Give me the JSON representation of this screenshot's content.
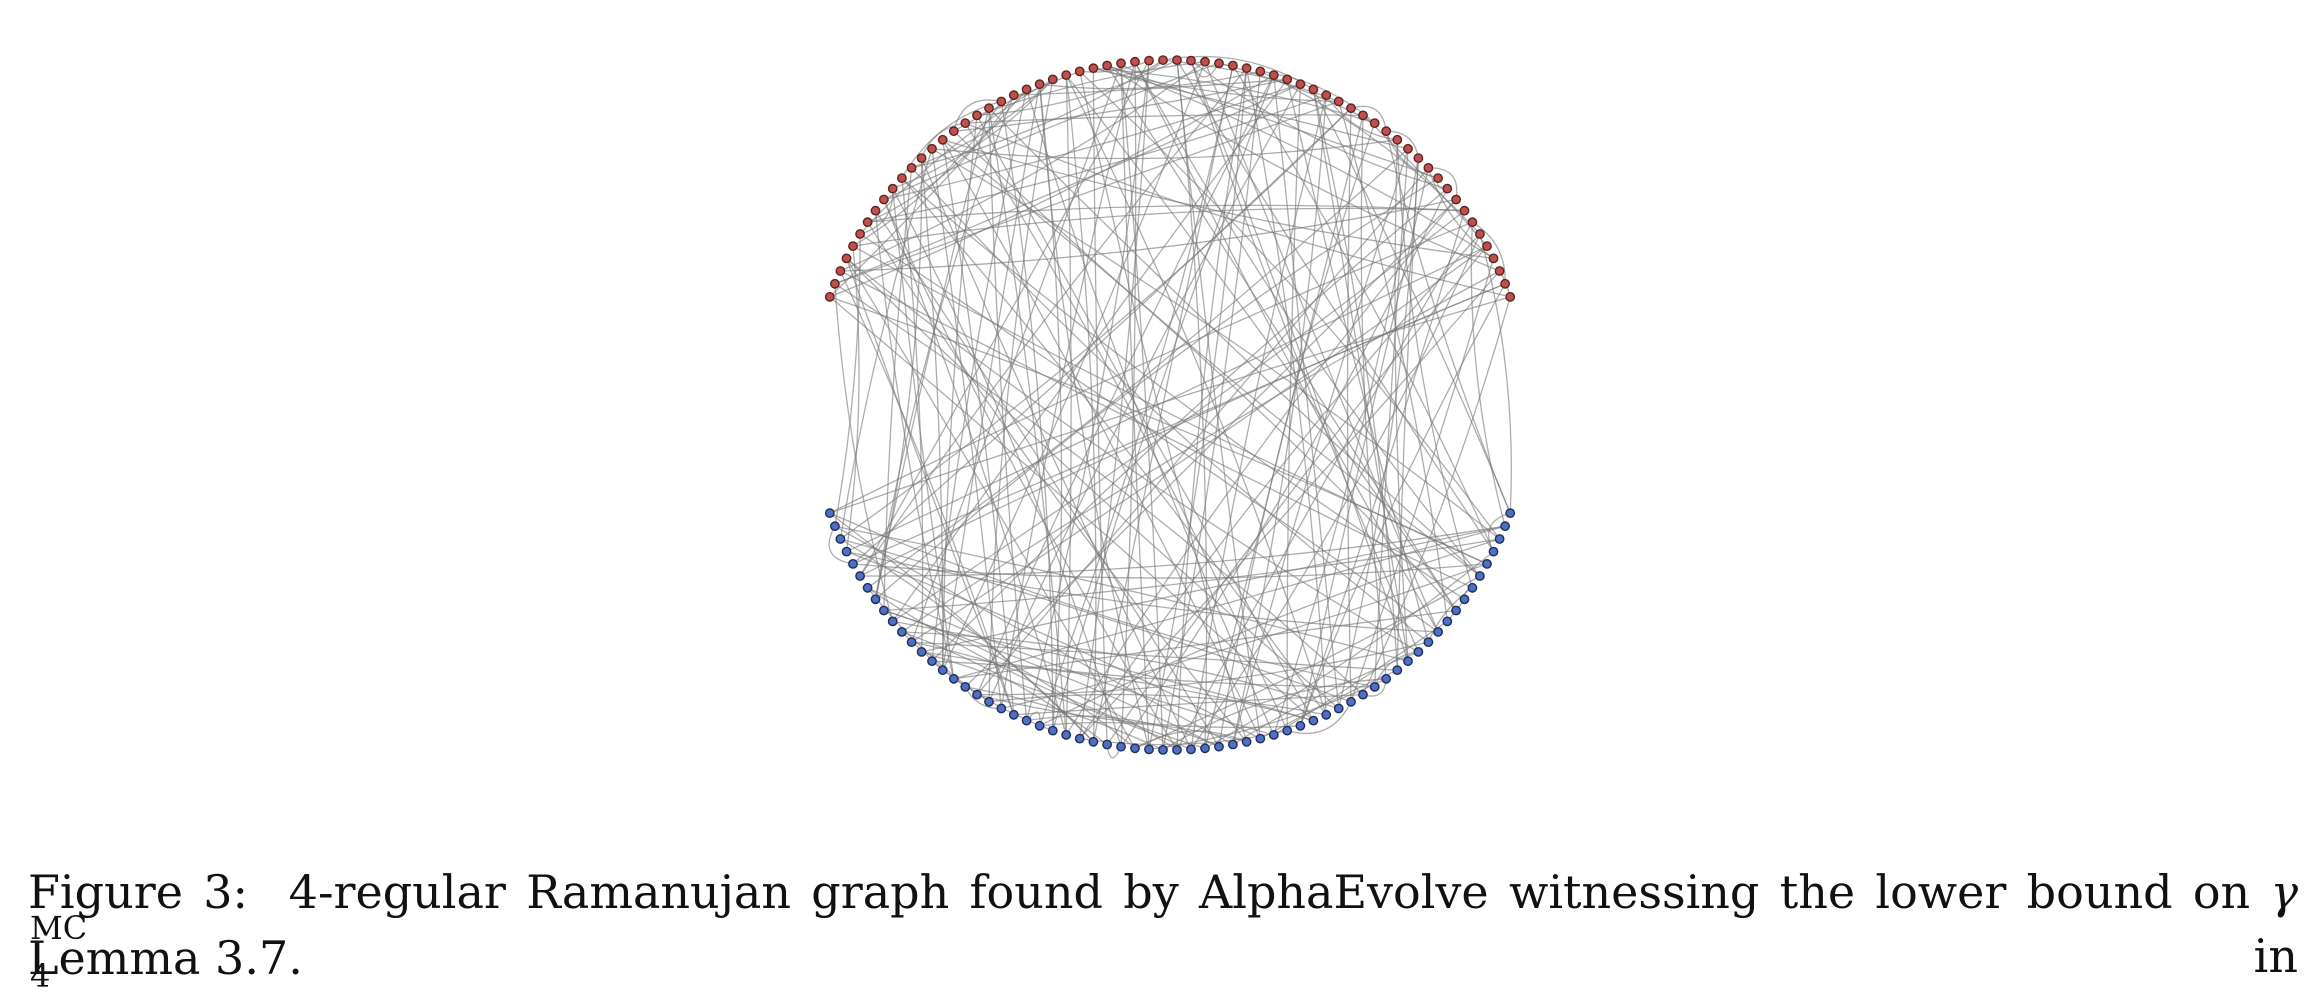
{
  "figure": {
    "graph": {
      "kind": "4-regular graph",
      "degree": 4,
      "groups": [
        {
          "name": "top",
          "color": "#c0504d",
          "stroke": "#5a2420",
          "count": 64
        },
        {
          "name": "bottom",
          "color": "#4f6fc2",
          "stroke": "#1f2d5a",
          "count": 64
        }
      ],
      "edge_color": "#777777"
    }
  },
  "caption": {
    "label": "Figure 3:",
    "text_before": "4-regular Ramanujan graph found by AlphaEvolve witnessing the lower bound on",
    "symbol": "γ",
    "superscript": "MC",
    "subscript": "4",
    "text_after": "in",
    "line2": "Lemma 3.7."
  }
}
